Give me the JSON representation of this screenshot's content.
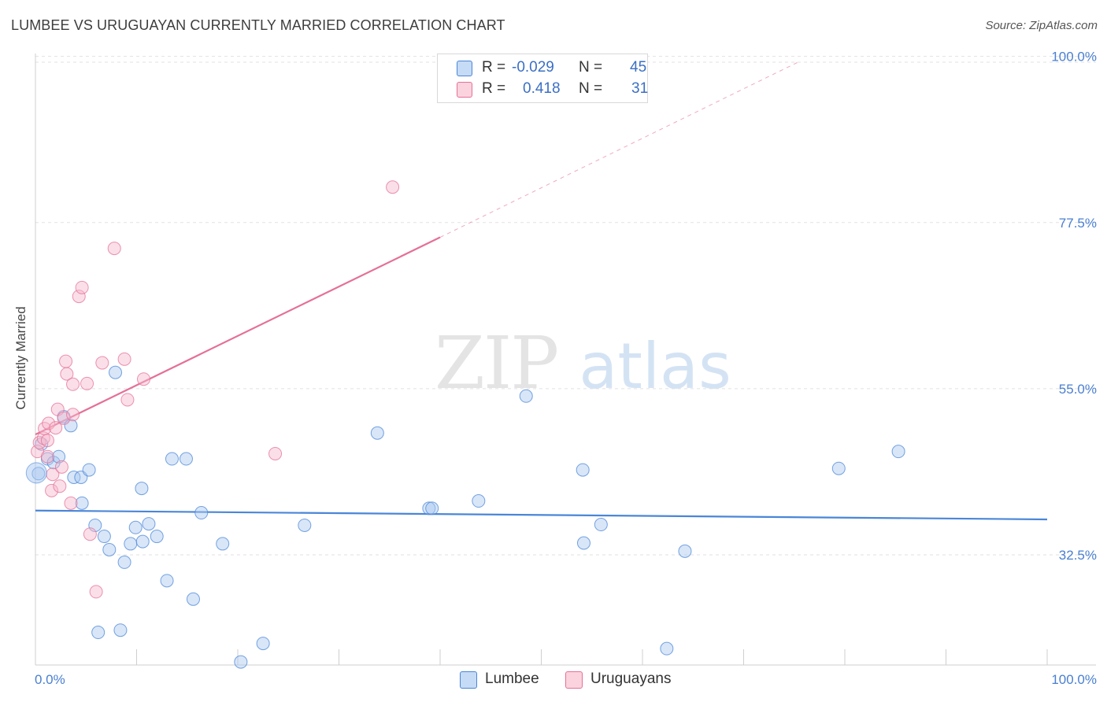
{
  "header": {
    "title": "LUMBEE VS URUGUAYAN CURRENTLY MARRIED CORRELATION CHART",
    "source": "Source: ZipAtlas.com"
  },
  "watermark": {
    "zip": "ZIP",
    "atlas": "atlas"
  },
  "legend": {
    "rows": [
      {
        "r_label": "R =",
        "r_value": "-0.029",
        "n_label": "N =",
        "n_value": "45",
        "color": "#a9c8f0"
      },
      {
        "r_label": "R =",
        "r_value": "0.418",
        "n_label": "N =",
        "n_value": "31",
        "color": "#f6b9cb"
      }
    ]
  },
  "bottom_legend": {
    "items": [
      {
        "label": "Lumbee",
        "color": "#a9c8f0"
      },
      {
        "label": "Uruguayans",
        "color": "#f6b9cb"
      }
    ]
  },
  "chart_data": {
    "type": "scatter",
    "title": "LUMBEE VS URUGUAYAN CURRENTLY MARRIED CORRELATION CHART",
    "ylabel": "Currently Married",
    "xlabel": "",
    "xlim": [
      0,
      100
    ],
    "ylim": [
      10,
      103
    ],
    "x_tick_labels": [
      "0.0%",
      "100.0%"
    ],
    "y_ticks": [
      {
        "value": 100.0,
        "label": "100.0%"
      },
      {
        "value": 77.5,
        "label": "77.5%"
      },
      {
        "value": 55.0,
        "label": "55.0%"
      },
      {
        "value": 32.5,
        "label": "32.5%"
      }
    ],
    "grid": true,
    "legend_position": "top-center",
    "series": [
      {
        "name": "Lumbee",
        "color": "#4a86d8",
        "fill": "#a9c8f0",
        "trend": {
          "x0": 0,
          "y0": 38.5,
          "x1": 100,
          "y1": 37.3,
          "style": "solid"
        },
        "points": [
          [
            0.3,
            43.5
          ],
          [
            0.6,
            47.5
          ],
          [
            1.2,
            45.5
          ],
          [
            1.8,
            45.0
          ],
          [
            2.3,
            45.8
          ],
          [
            2.8,
            51.2
          ],
          [
            3.5,
            50.0
          ],
          [
            3.8,
            43.0
          ],
          [
            4.5,
            43.0
          ],
          [
            4.6,
            39.5
          ],
          [
            5.3,
            44.0
          ],
          [
            5.9,
            36.5
          ],
          [
            6.2,
            22.0
          ],
          [
            6.8,
            35.0
          ],
          [
            7.3,
            33.2
          ],
          [
            7.9,
            57.2
          ],
          [
            8.4,
            22.3
          ],
          [
            8.8,
            31.5
          ],
          [
            9.4,
            34.0
          ],
          [
            9.9,
            36.2
          ],
          [
            10.5,
            41.5
          ],
          [
            10.6,
            34.3
          ],
          [
            11.2,
            36.7
          ],
          [
            12.0,
            35.0
          ],
          [
            13.0,
            29.0
          ],
          [
            13.5,
            45.5
          ],
          [
            14.9,
            45.5
          ],
          [
            15.6,
            26.5
          ],
          [
            16.4,
            38.2
          ],
          [
            18.5,
            34.0
          ],
          [
            20.3,
            18.0
          ],
          [
            22.5,
            20.5
          ],
          [
            26.6,
            36.5
          ],
          [
            33.8,
            49.0
          ],
          [
            38.9,
            38.8
          ],
          [
            39.2,
            38.8
          ],
          [
            43.8,
            39.8
          ],
          [
            48.5,
            54.0
          ],
          [
            54.1,
            44.0
          ],
          [
            54.2,
            34.1
          ],
          [
            55.9,
            36.6
          ],
          [
            62.4,
            19.8
          ],
          [
            64.2,
            33.0
          ],
          [
            79.4,
            44.2
          ],
          [
            85.3,
            46.5
          ]
        ]
      },
      {
        "name": "Uruguayans",
        "color": "#e57096",
        "fill": "#f6b9cb",
        "trend": {
          "x0": 0,
          "y0": 48.8,
          "x1": 40,
          "y1": 75.5,
          "style": "solid",
          "extension": {
            "x1": 75.5,
            "y1": 99.3,
            "style": "dashed"
          }
        },
        "points": [
          [
            0.2,
            46.5
          ],
          [
            0.4,
            47.7
          ],
          [
            0.8,
            48.3
          ],
          [
            0.9,
            49.6
          ],
          [
            1.2,
            45.8
          ],
          [
            1.2,
            48.0
          ],
          [
            1.3,
            50.3
          ],
          [
            1.6,
            41.2
          ],
          [
            1.7,
            43.4
          ],
          [
            2.0,
            49.7
          ],
          [
            2.2,
            52.2
          ],
          [
            2.4,
            41.8
          ],
          [
            2.6,
            44.4
          ],
          [
            2.8,
            51.0
          ],
          [
            3.0,
            58.7
          ],
          [
            3.1,
            57.0
          ],
          [
            3.5,
            39.5
          ],
          [
            3.7,
            55.6
          ],
          [
            3.7,
            51.5
          ],
          [
            4.3,
            67.5
          ],
          [
            4.6,
            68.7
          ],
          [
            5.1,
            55.7
          ],
          [
            5.4,
            35.3
          ],
          [
            6.0,
            27.5
          ],
          [
            6.6,
            58.5
          ],
          [
            7.8,
            74.0
          ],
          [
            8.8,
            59.0
          ],
          [
            9.1,
            53.5
          ],
          [
            10.7,
            56.3
          ],
          [
            23.7,
            46.2
          ],
          [
            35.3,
            82.3
          ]
        ]
      }
    ]
  }
}
